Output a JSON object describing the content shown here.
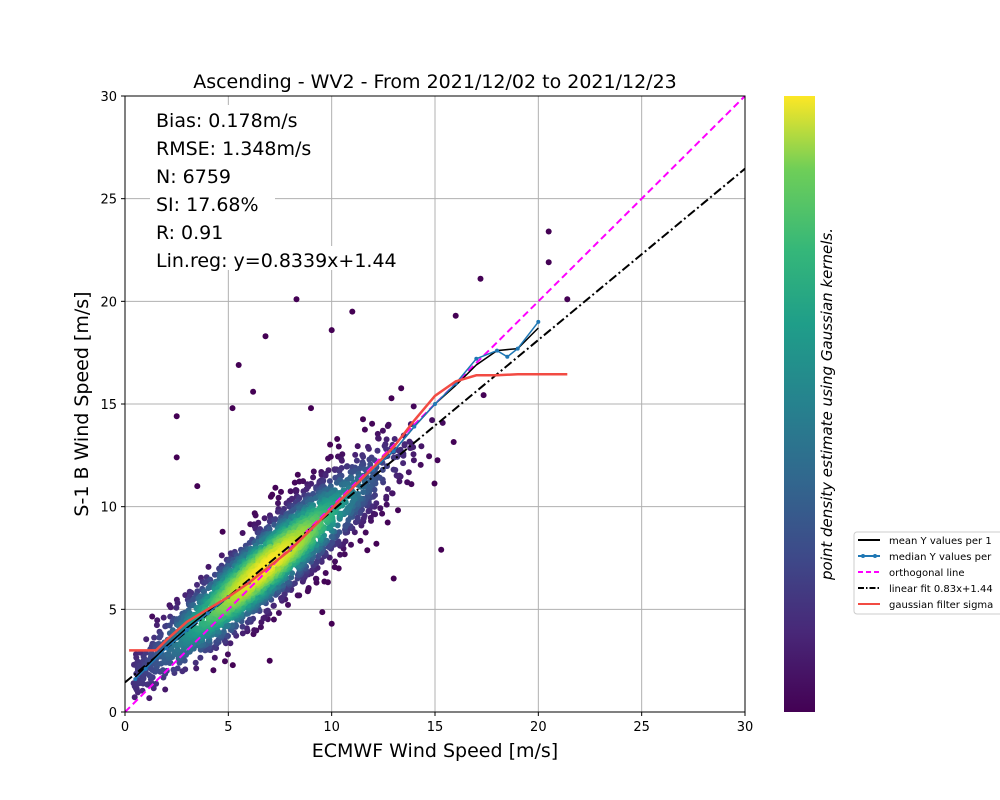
{
  "chart_data": {
    "type": "scatter",
    "title": "Ascending - WV2 - From 2021/12/02 to 2021/12/23",
    "xlabel": "ECMWF Wind Speed [m/s]",
    "ylabel": "S-1 B Wind Speed [m/s]",
    "xlim": [
      0,
      30
    ],
    "ylim": [
      0,
      30
    ],
    "xticks": [
      "0",
      "5",
      "10",
      "15",
      "20",
      "25",
      "30"
    ],
    "yticks": [
      "0",
      "5",
      "10",
      "15",
      "20",
      "25",
      "30"
    ],
    "grid": true,
    "colormap": "viridis",
    "colorbar_label": "point density estimate using Gaussian kernels.",
    "stats": [
      "Bias: 0.178m/s",
      "RMSE: 1.348m/s",
      "N: 6759",
      "SI: 17.68%",
      "R: 0.91",
      "Lin.reg: y=0.8339x+1.44"
    ],
    "legend_placement": "right, outside plot (clipped)",
    "legend": [
      {
        "label": "mean Y values per 1",
        "color": "#000000",
        "style": "solid"
      },
      {
        "label": "median Y values per",
        "color": "#1f77b4",
        "style": "solid-marker"
      },
      {
        "label": "orthogonal line",
        "color": "#ff00ff",
        "style": "dashed"
      },
      {
        "label": "linear fit 0.83x+1.44",
        "color": "#000000",
        "style": "dashdot"
      },
      {
        "label": "gaussian filter sigma",
        "color": "#f24b43",
        "style": "solid"
      }
    ],
    "series": [
      {
        "name": "mean Y values per 1",
        "color": "#000000",
        "x": [
          0.5,
          1,
          2,
          3,
          4,
          5,
          6,
          7,
          8,
          9,
          10,
          11,
          12,
          13,
          14,
          15,
          16,
          17,
          18,
          19,
          20
        ],
        "y": [
          1.7,
          2.2,
          3.2,
          4.1,
          4.9,
          5.6,
          6.3,
          7.1,
          7.9,
          8.9,
          9.9,
          10.9,
          11.8,
          12.7,
          13.9,
          15.0,
          15.9,
          16.9,
          17.6,
          17.7,
          18.7
        ]
      },
      {
        "name": "median Y values per",
        "color": "#1f77b4",
        "x": [
          0.5,
          1,
          2,
          3,
          4,
          5,
          6,
          7,
          8,
          9,
          10,
          11,
          12,
          13,
          14,
          15,
          16,
          17,
          18,
          18.5,
          19,
          20
        ],
        "y": [
          1.6,
          2.1,
          3.1,
          4.0,
          4.8,
          5.6,
          6.3,
          7.1,
          7.9,
          8.9,
          9.9,
          10.9,
          11.8,
          12.7,
          13.9,
          15.0,
          16.0,
          17.2,
          17.6,
          17.3,
          17.7,
          19.0
        ]
      },
      {
        "name": "linear fit 0.83x+1.44",
        "color": "#000000",
        "x": [
          0,
          30
        ],
        "y": [
          1.44,
          26.46
        ]
      },
      {
        "name": "orthogonal line",
        "color": "#ff00ff",
        "x": [
          0,
          30
        ],
        "y": [
          0,
          30
        ]
      },
      {
        "name": "gaussian filter sigma",
        "color": "#f24b43",
        "x": [
          0.2,
          1,
          1.5,
          2,
          3,
          4,
          5,
          6,
          7,
          8,
          9,
          10,
          11,
          12,
          13,
          14,
          15,
          16,
          17,
          18,
          19,
          20,
          21,
          21.4
        ],
        "y": [
          3.0,
          3.0,
          3.0,
          3.5,
          4.4,
          5.0,
          5.6,
          6.3,
          7.1,
          7.9,
          8.9,
          9.9,
          10.9,
          11.9,
          12.9,
          14.2,
          15.4,
          16.1,
          16.4,
          16.4,
          16.45,
          16.45,
          16.45,
          16.45
        ]
      }
    ]
  }
}
